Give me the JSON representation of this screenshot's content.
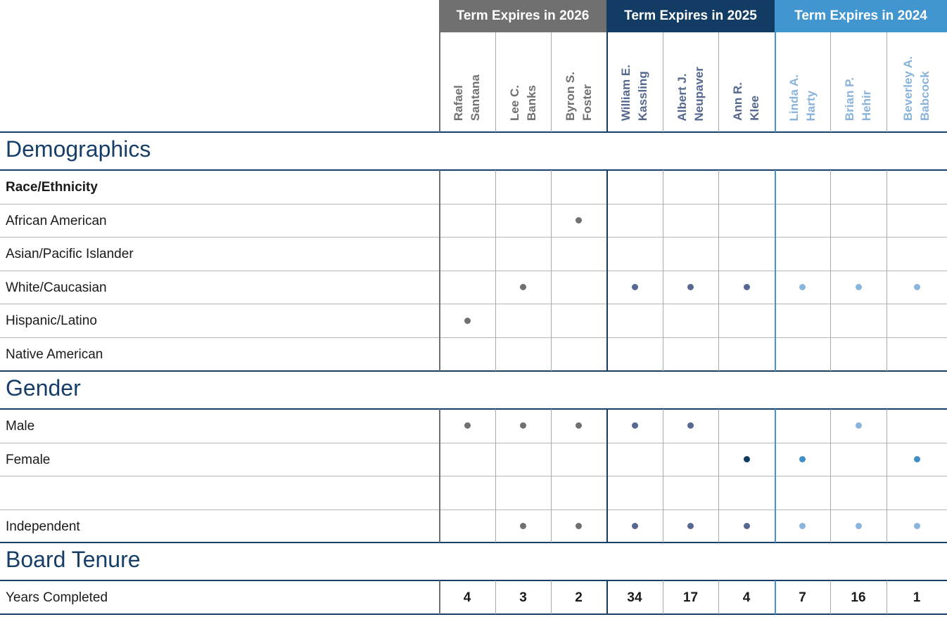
{
  "groups": [
    {
      "label": "Term Expires in 2026",
      "color": "#707070",
      "name_color": "#707070",
      "dot_color": "#707070",
      "members": [
        "Rafael\nSantana",
        "Lee C.\nBanks",
        "Byron S.\nFoster"
      ]
    },
    {
      "label": "Term Expires in 2025",
      "color": "#133c65",
      "name_color": "#56688f",
      "dot_color": "#56688f",
      "members": [
        "William E.\nKassling",
        "Albert J.\nNeupaver",
        "Ann R.\nKlee"
      ]
    },
    {
      "label": "Term Expires in 2024",
      "color": "#4196d0",
      "name_color": "#8ab4dc",
      "dot_color": "#8ab4dc",
      "members": [
        "Linda A.\nHarty",
        "Brian P.\nHehir",
        "Beverley A.\nBabcock"
      ]
    }
  ],
  "highlight_colors": [
    "#707070",
    "#0f3a62",
    "#3f8fc8"
  ],
  "sections": [
    {
      "title": "Demographics",
      "rows": [
        {
          "label": "Race/Ethnicity",
          "bold": true,
          "marks": [
            0,
            0,
            0,
            0,
            0,
            0,
            0,
            0,
            0
          ]
        },
        {
          "label": "African American",
          "marks": [
            0,
            0,
            1,
            0,
            0,
            0,
            0,
            0,
            0
          ]
        },
        {
          "label": "Asian/Pacific Islander",
          "marks": [
            0,
            0,
            0,
            0,
            0,
            0,
            0,
            0,
            0
          ]
        },
        {
          "label": "White/Caucasian",
          "marks": [
            0,
            1,
            0,
            1,
            1,
            1,
            1,
            1,
            1
          ]
        },
        {
          "label": "Hispanic/Latino",
          "marks": [
            1,
            0,
            0,
            0,
            0,
            0,
            0,
            0,
            0
          ]
        },
        {
          "label": "Native American",
          "marks": [
            0,
            0,
            0,
            0,
            0,
            0,
            0,
            0,
            0
          ]
        }
      ]
    },
    {
      "title": "Gender",
      "rows": [
        {
          "label": "Male",
          "marks": [
            1,
            1,
            1,
            1,
            1,
            0,
            0,
            1,
            0
          ]
        },
        {
          "label": "Female",
          "marks": [
            0,
            0,
            0,
            0,
            0,
            2,
            2,
            0,
            2
          ]
        },
        {
          "label": "",
          "marks": [
            0,
            0,
            0,
            0,
            0,
            0,
            0,
            0,
            0
          ]
        },
        {
          "label": "Independent",
          "marks": [
            0,
            1,
            1,
            1,
            1,
            1,
            1,
            1,
            1
          ]
        }
      ]
    },
    {
      "title": "Board Tenure",
      "rows": [
        {
          "label": "Years Completed",
          "values": [
            "4",
            "3",
            "2",
            "34",
            "17",
            "4",
            "7",
            "16",
            "1"
          ]
        }
      ]
    }
  ]
}
